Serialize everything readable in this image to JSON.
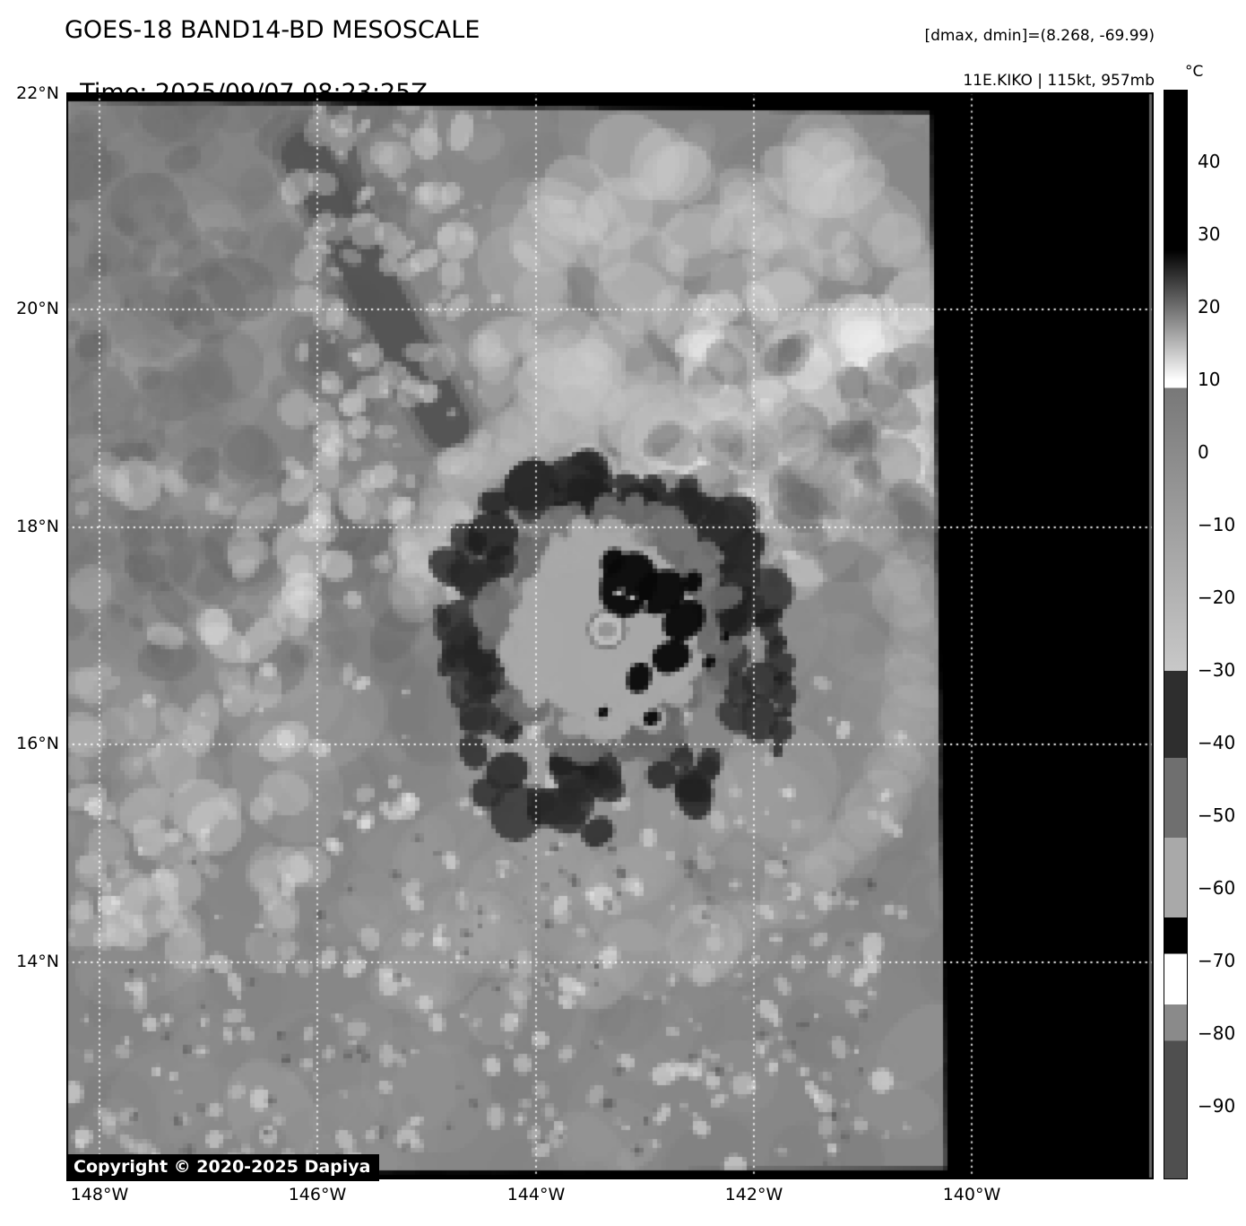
{
  "figure": {
    "title_line1": "GOES-18 BAND14-BD MESOSCALE",
    "title_line2": "Time: 2025/09/07 08:23:25Z",
    "info_line1": "[dmax, dmin]=(8.268, -69.99)",
    "info_line2": "11E.KIKO | 115kt, 957mb"
  },
  "axes": {
    "lat_labels": [
      "22°N",
      "20°N",
      "18°N",
      "16°N",
      "14°N"
    ],
    "lon_labels": [
      "148°W",
      "146°W",
      "144°W",
      "142°W",
      "140°W"
    ]
  },
  "colorbar": {
    "unit": "°C",
    "tick_labels": [
      "40",
      "30",
      "20",
      "10",
      "0",
      "−10",
      "−20",
      "−30",
      "−40",
      "−50",
      "−60",
      "−70",
      "−80",
      "−90"
    ]
  },
  "map_overlay": {
    "copyright": "Copyright © 2020-2025 Dapiya"
  }
}
